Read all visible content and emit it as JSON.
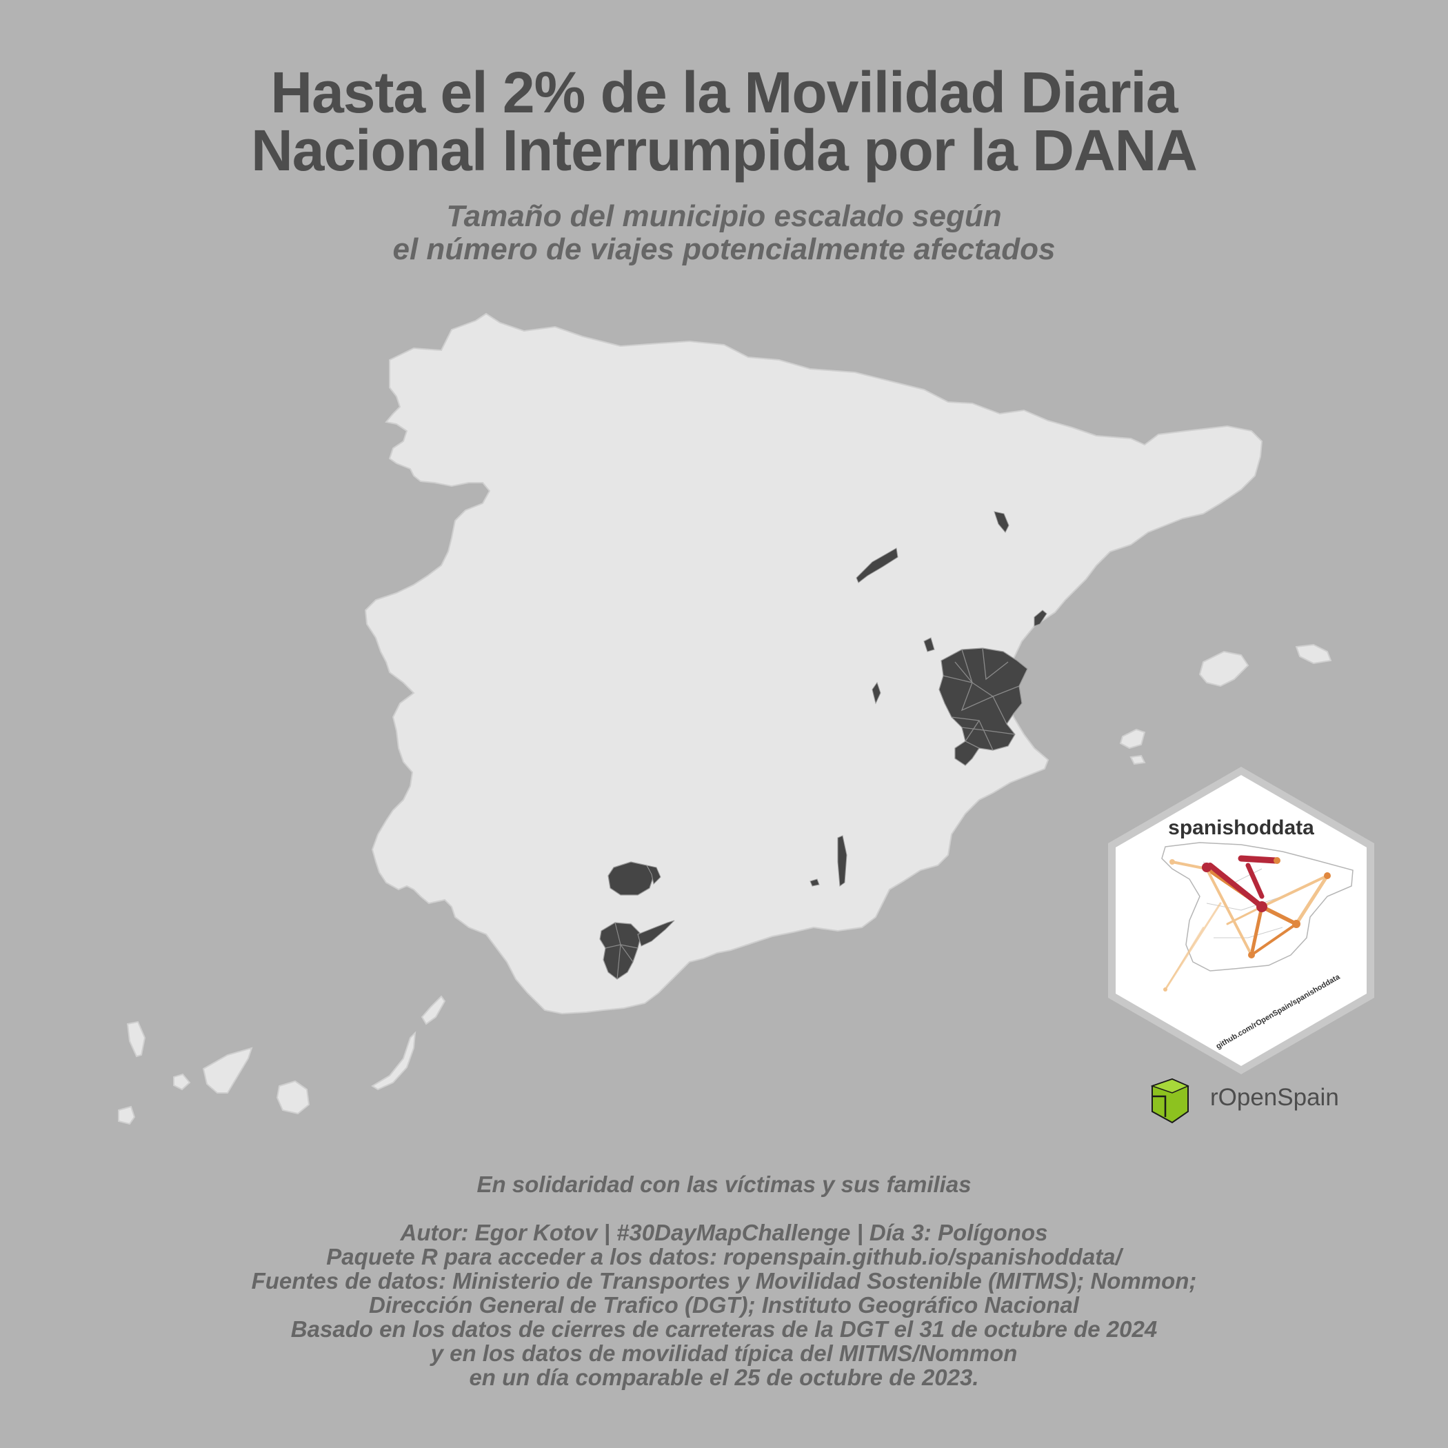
{
  "title": {
    "line1": "Hasta el 2% de la Movilidad Diaria",
    "line2": "Nacional Interrumpida por la DANA"
  },
  "subtitle": {
    "line1": "Tamaño del municipio escalado según",
    "line2": "el número de viajes potencialmente afectados"
  },
  "colors": {
    "background": "#b3b3b3",
    "land": "#e6e6e6",
    "affected": "#454545",
    "title": "#4d4d4d",
    "text": "#666666",
    "hex_border": "#c8c8c8",
    "flow_red": "#b5283a",
    "flow_orange": "#e0873e",
    "flow_light": "#f2c48e",
    "ropenspain_green": "#8dc21f"
  },
  "logo": {
    "package_name": "spanishoddata",
    "package_url": "github.com/rOpenSpain/spanishoddata",
    "org_name": "rOpenSpain",
    "org_icon": "ropenspain-logo-icon"
  },
  "footer": {
    "solidarity": "En solidaridad con las víctimas y sus familias",
    "lines": [
      "Autor: Egor Kotov | #30DayMapChallenge | Día 3: Polígonos",
      "Paquete R para acceder a los datos: ropenspain.github.io/spanishoddata/",
      "Fuentes de datos: Ministerio de Transportes y Movilidad Sostenible (MITMS); Nommon;",
      "Dirección General de Trafico (DGT); Instituto Geográfico Nacional",
      "Basado en los datos de cierres de carreteras de la DGT el 31 de octubre de 2024",
      "y en los datos de movilidad típica del MITMS/Nommon",
      "en un día comparable el 25 de octubre de 2023."
    ]
  }
}
